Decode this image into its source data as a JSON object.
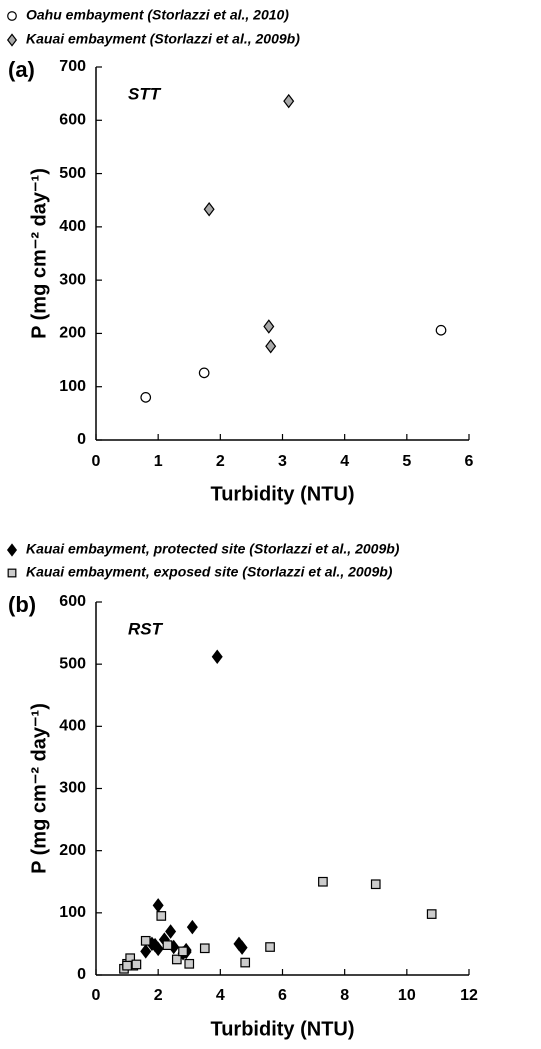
{
  "chart_data": [
    {
      "type": "scatter",
      "panel_label": "(a)",
      "annotation": "STT",
      "x_label": "Turbidity (NTU)",
      "y_label": "P (mg cm⁻² day⁻¹)",
      "xlim": [
        0,
        6
      ],
      "xticks": [
        0,
        1,
        2,
        3,
        4,
        5,
        6
      ],
      "ylim": [
        0,
        700
      ],
      "yticks": [
        0,
        100,
        200,
        300,
        400,
        500,
        600,
        700
      ],
      "series": [
        {
          "name": "Oahu embayment (Storlazzi et al., 2010)",
          "marker": "circle",
          "color": "#ffffff",
          "x": [
            0.8,
            1.74,
            5.55
          ],
          "values": [
            80,
            126,
            206
          ]
        },
        {
          "name": "Kauai embayment (Storlazzi et al., 2009b)",
          "marker": "diamond",
          "color": "#a8a8a8",
          "x": [
            1.82,
            2.78,
            2.81,
            3.1
          ],
          "values": [
            433,
            213,
            176,
            636
          ]
        }
      ]
    },
    {
      "type": "scatter",
      "panel_label": "(b)",
      "annotation": "RST",
      "x_label": "Turbidity (NTU)",
      "y_label": "P (mg cm⁻² day⁻¹)",
      "xlim": [
        0,
        12
      ],
      "xticks": [
        0,
        2,
        4,
        6,
        8,
        10,
        12
      ],
      "ylim": [
        0,
        600
      ],
      "yticks": [
        0,
        100,
        200,
        300,
        400,
        500,
        600
      ],
      "series": [
        {
          "name": "Kauai embayment, protected site (Storlazzi et al., 2009b)",
          "marker": "diamond",
          "color": "#000000",
          "x": [
            3.9,
            2.0,
            2.2,
            2.4,
            1.6,
            1.9,
            2.0,
            2.5,
            2.8,
            2.9,
            3.1,
            4.6,
            4.7,
            2.9,
            1.8
          ],
          "values": [
            512,
            112,
            57,
            70,
            38,
            48,
            42,
            45,
            35,
            40,
            77,
            50,
            44,
            37,
            50
          ]
        },
        {
          "name": "Kauai embayment, exposed site (Storlazzi et al., 2009b)",
          "marker": "square",
          "color": "#cccccc",
          "x": [
            0.9,
            1.0,
            1.1,
            1.2,
            1.3,
            1.6,
            2.1,
            2.3,
            2.6,
            2.8,
            3.0,
            3.5,
            4.8,
            5.6,
            7.3,
            9.0,
            10.8,
            1.0
          ],
          "values": [
            10,
            18,
            27,
            15,
            17,
            55,
            95,
            48,
            25,
            38,
            18,
            43,
            20,
            45,
            150,
            146,
            98,
            15
          ]
        }
      ]
    }
  ]
}
